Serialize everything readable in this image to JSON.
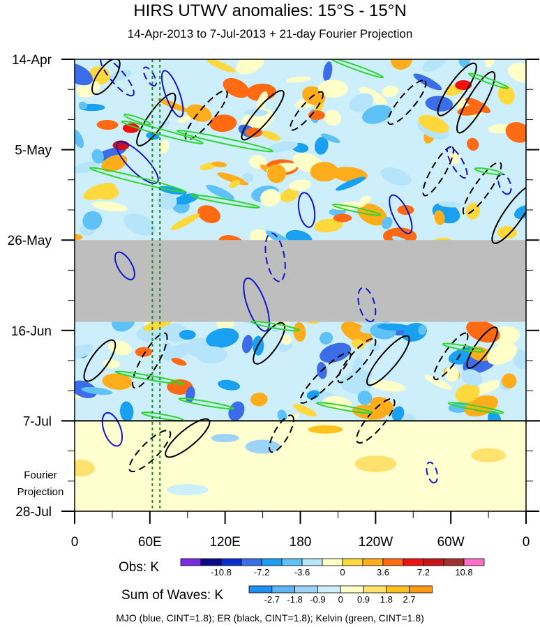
{
  "title": "HIRS UTWV anomalies: 15°S - 15°N",
  "subtitle": "14-Apr-2013 to 7-Jul-2013 + 21-day Fourier Projection",
  "chart_data": {
    "type": "heatmap",
    "title": "HIRS UTWV anomalies: 15°S - 15°N",
    "subtitle": "14-Apr-2013 to 7-Jul-2013 + 21-day Fourier Projection",
    "x_ticks": [
      {
        "lon": 0,
        "label": "0"
      },
      {
        "lon": 60,
        "label": "60E"
      },
      {
        "lon": 120,
        "label": "120E"
      },
      {
        "lon": 180,
        "label": "180"
      },
      {
        "lon": 240,
        "label": "120W"
      },
      {
        "lon": 300,
        "label": "60W"
      },
      {
        "lon": 360,
        "label": "0"
      }
    ],
    "y_ticks": [
      {
        "day": 0,
        "label": "14-Apr"
      },
      {
        "day": 21,
        "label": "5-May"
      },
      {
        "day": 42,
        "label": "26-May"
      },
      {
        "day": 63,
        "label": "16-Jun"
      },
      {
        "day": 84,
        "label": "7-Jul"
      },
      {
        "day": 105,
        "label": ""
      }
    ],
    "y_bottom_label": "28-Jul",
    "projection_label_line1": "Fourier",
    "projection_label_line2": "Projection",
    "xlim": [
      0,
      360
    ],
    "ylim_days": [
      0,
      105
    ],
    "missing_data_days": [
      42,
      61
    ],
    "forecast_start_day": 84,
    "reference_lines_lon": [
      62,
      68
    ],
    "obs_colorbar": {
      "label": "Obs: K",
      "colors": [
        "#7b2ae0",
        "#0b0b8a",
        "#0a2ecc",
        "#3c6de8",
        "#1aa0f0",
        "#5ec2f7",
        "#b5e4fb",
        "#ffffc8",
        "#ffd83c",
        "#ffad1a",
        "#ff6a12",
        "#f01010",
        "#c8141a",
        "#a0322d",
        "#ff6ec8"
      ],
      "tick_labels": [
        "-10.8",
        "-7.2",
        "-3.6",
        "0",
        "3.6",
        "7.2",
        "10.8"
      ]
    },
    "waves_colorbar": {
      "label": "Sum of Waves: K",
      "colors": [
        "#1e90f0",
        "#5fb5f3",
        "#9dd3f7",
        "#cdeefb",
        "#ffffc8",
        "#ffe26e",
        "#ffc21e",
        "#ff9a14"
      ],
      "tick_labels": [
        "-2.7",
        "-1.8",
        "-0.9",
        "0",
        "0.9",
        "1.8",
        "2.7"
      ]
    },
    "contours": {
      "mjo": {
        "name": "MJO",
        "color": "#1515cc",
        "cint": 1.8
      },
      "er": {
        "name": "ER",
        "color": "#000000",
        "cint": 1.8
      },
      "kelvin": {
        "name": "Kelvin",
        "color": "#2ed82e",
        "cint": 1.8
      }
    }
  },
  "legend_note": "MJO (blue, CINT=1.8); ER (black, CINT=1.8); Kelvin (green, CINT=1.8)"
}
